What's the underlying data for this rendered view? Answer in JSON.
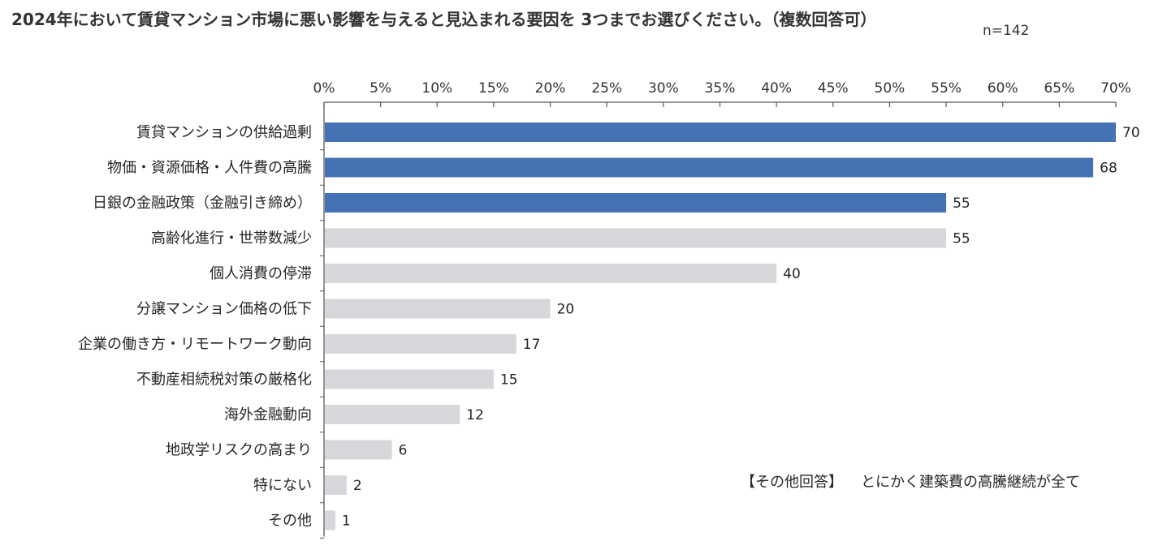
{
  "title": "2024年において賃貸マンション市場に悪い影響を与えると見込まれる要因を 3つまでお選びください。（複数回答可）",
  "sample_size": "n=142",
  "note": {
    "label": "【その他回答】",
    "text": "とにかく建築費の高騰継続が全て"
  },
  "colors": {
    "highlight": "#4472B4",
    "normal": "#D6D7DA",
    "axis": "#595959"
  },
  "chart_data": {
    "type": "bar",
    "orientation": "horizontal",
    "xlim": [
      0,
      70
    ],
    "x_ticks": [
      "0%",
      "5%",
      "10%",
      "15%",
      "20%",
      "25%",
      "30%",
      "35%",
      "40%",
      "45%",
      "50%",
      "55%",
      "60%",
      "65%",
      "70%"
    ],
    "x_tick_values": [
      0,
      5,
      10,
      15,
      20,
      25,
      30,
      35,
      40,
      45,
      50,
      55,
      60,
      65,
      70
    ],
    "x_axis_position": "top",
    "grid": false,
    "categories": [
      "賃貸マンションの供給過剰",
      "物価・資源価格・人件費の高騰",
      "日銀の金融政策（金融引き締め）",
      "高齢化進行・世帯数減少",
      "個人消費の停滞",
      "分譲マンション価格の低下",
      "企業の働き方・リモートワーク動向",
      "不動産相続税対策の厳格化",
      "海外金融動向",
      "地政学リスクの高まり",
      "特にない",
      "その他"
    ],
    "values": [
      70,
      68,
      55,
      55,
      40,
      20,
      17,
      15,
      12,
      6,
      2,
      1
    ],
    "highlighted": [
      true,
      true,
      true,
      false,
      false,
      false,
      false,
      false,
      false,
      false,
      false,
      false
    ]
  }
}
